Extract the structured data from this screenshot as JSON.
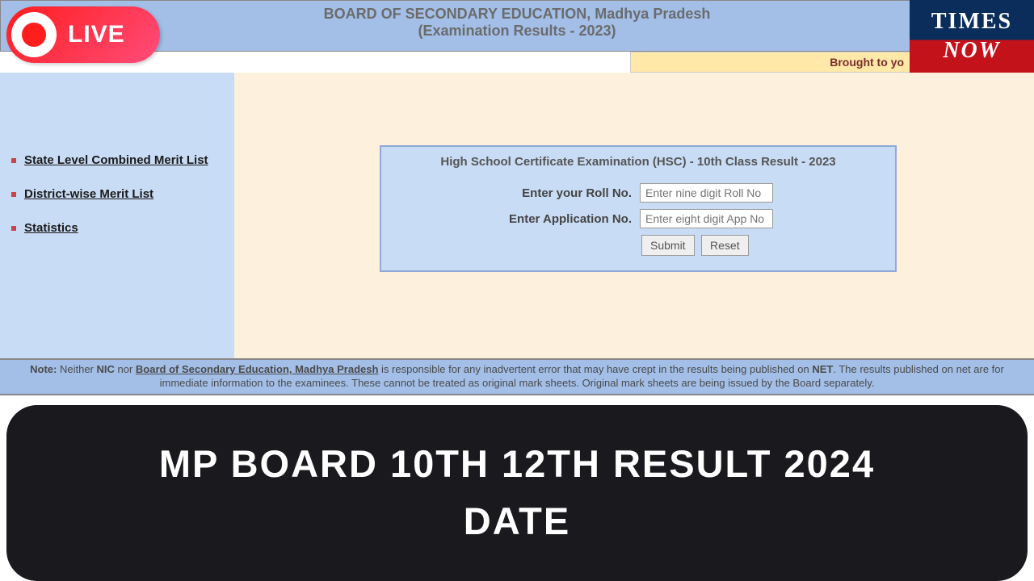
{
  "header": {
    "title": "BOARD OF SECONDARY EDUCATION, Madhya Pradesh",
    "subtitle": "(Examination Results - 2023)"
  },
  "live": {
    "label": "LIVE"
  },
  "logo": {
    "line1": "TIMES",
    "line2": "NOW"
  },
  "brought": {
    "text": "Brought to yo"
  },
  "sidebar": {
    "items": [
      {
        "label": "State Level Combined Merit List"
      },
      {
        "label": "District-wise Merit List"
      },
      {
        "label": "Statistics"
      }
    ]
  },
  "form": {
    "title": "High School Certificate Examination (HSC) - 10th Class Result - 2023",
    "roll_label": "Enter your Roll No.",
    "roll_placeholder": "Enter nine digit Roll No",
    "app_label": "Enter Application No.",
    "app_placeholder": "Enter eight digit App No",
    "submit": "Submit",
    "reset": "Reset"
  },
  "note": {
    "prefix": "Note:",
    "t1": " Neither ",
    "nic": "NIC",
    "t2": " nor ",
    "board": "Board of Secondary Education, Madhya Pradesh",
    "t3": " is responsible for any inadvertent error that may have crept in the results being published on ",
    "net": "NET",
    "t4": ". The results published on net are for immediate information to the examinees. These cannot be treated as original mark sheets. Original mark sheets are being issued by the Board separately."
  },
  "banner": {
    "line1": "MP BOARD 10TH 12TH RESULT 2024",
    "line2": "DATE"
  },
  "colors": {
    "header_bg": "#a3bfe8",
    "sidebar_bg": "#c9dcf5",
    "content_bg": "#fdf1de",
    "banner_bg": "#1a1a1e"
  }
}
